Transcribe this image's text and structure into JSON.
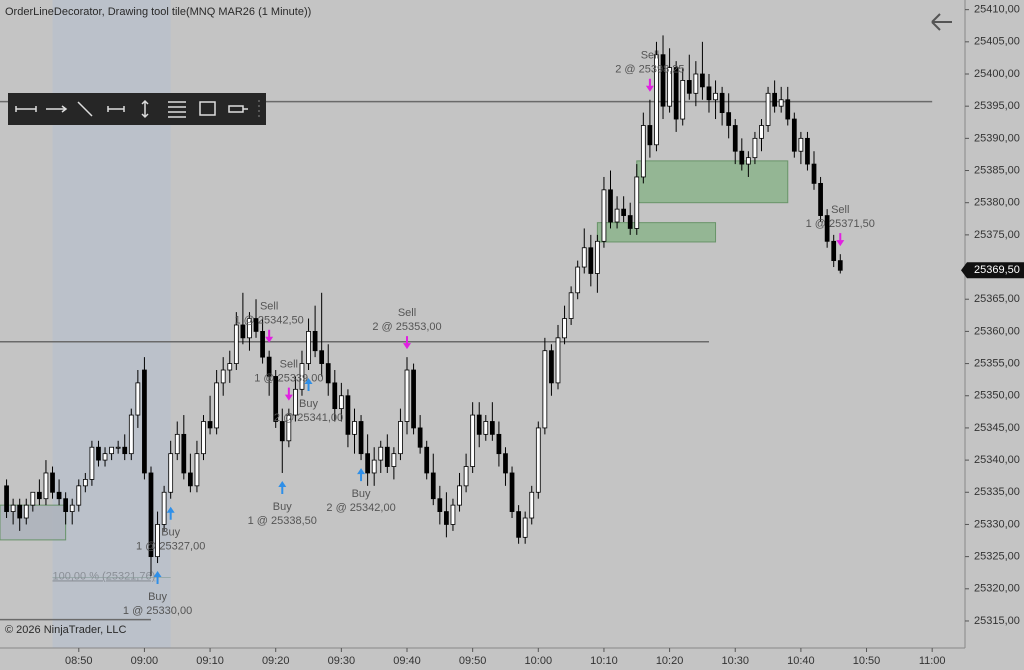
{
  "chart_data": {
    "type": "candlestick",
    "title": "OrderLineDecorator, Drawing tool tile(MNQ MAR26 (1 Minute))",
    "copyright": "© 2026 NinjaTrader, LLC",
    "up_color": "#ffffff",
    "down_color": "#000000",
    "xlim": [
      "08:38",
      "11:05"
    ],
    "ylim": [
      25310.8,
      25411.5
    ],
    "xticks": [
      "08:50",
      "09:00",
      "09:10",
      "09:20",
      "09:30",
      "09:40",
      "09:50",
      "10:00",
      "10:10",
      "10:20",
      "10:30",
      "10:40",
      "10:50",
      "11:00"
    ],
    "yticks": [
      {
        "value": 25315,
        "label": "25315,00"
      },
      {
        "value": 25320,
        "label": "25320,00"
      },
      {
        "value": 25325,
        "label": "25325,00"
      },
      {
        "value": 25330,
        "label": "25330,00"
      },
      {
        "value": 25335,
        "label": "25335,00"
      },
      {
        "value": 25340,
        "label": "25340,00"
      },
      {
        "value": 25345,
        "label": "25345,00"
      },
      {
        "value": 25350,
        "label": "25350,00"
      },
      {
        "value": 25355,
        "label": "25355,00"
      },
      {
        "value": 25360,
        "label": "25360,00"
      },
      {
        "value": 25365,
        "label": "25365,00"
      },
      {
        "value": 25370,
        "label": "25370,00"
      },
      {
        "value": 25375,
        "label": "25375,00"
      },
      {
        "value": 25380,
        "label": "25380,00"
      },
      {
        "value": 25385,
        "label": "25385,00"
      },
      {
        "value": 25390,
        "label": "25390,00"
      },
      {
        "value": 25395,
        "label": "25395,00"
      },
      {
        "value": 25400,
        "label": "25400,00"
      },
      {
        "value": 25405,
        "label": "25405,00"
      },
      {
        "value": 25410,
        "label": "25410,00"
      }
    ],
    "price_marker": {
      "value": 25369.5,
      "label": "25369,50"
    },
    "x": [
      "08:39",
      "08:40",
      "08:41",
      "08:42",
      "08:43",
      "08:44",
      "08:45",
      "08:46",
      "08:47",
      "08:48",
      "08:49",
      "08:50",
      "08:51",
      "08:52",
      "08:53",
      "08:54",
      "08:55",
      "08:56",
      "08:57",
      "08:58",
      "08:59",
      "09:00",
      "09:01",
      "09:02",
      "09:03",
      "09:04",
      "09:05",
      "09:06",
      "09:07",
      "09:08",
      "09:09",
      "09:10",
      "09:11",
      "09:12",
      "09:13",
      "09:14",
      "09:15",
      "09:16",
      "09:17",
      "09:18",
      "09:19",
      "09:20",
      "09:21",
      "09:22",
      "09:23",
      "09:24",
      "09:25",
      "09:26",
      "09:27",
      "09:28",
      "09:29",
      "09:30",
      "09:31",
      "09:32",
      "09:33",
      "09:34",
      "09:35",
      "09:36",
      "09:37",
      "09:38",
      "09:39",
      "09:40",
      "09:41",
      "09:42",
      "09:43",
      "09:44",
      "09:45",
      "09:46",
      "09:47",
      "09:48",
      "09:49",
      "09:50",
      "09:51",
      "09:52",
      "09:53",
      "09:54",
      "09:55",
      "09:56",
      "09:57",
      "09:58",
      "09:59",
      "10:00",
      "10:01",
      "10:02",
      "10:03",
      "10:04",
      "10:05",
      "10:06",
      "10:07",
      "10:08",
      "10:09",
      "10:10",
      "10:11",
      "10:12",
      "10:13",
      "10:14",
      "10:15",
      "10:16",
      "10:17",
      "10:18",
      "10:19",
      "10:20",
      "10:21",
      "10:22",
      "10:23",
      "10:24",
      "10:25",
      "10:26",
      "10:27",
      "10:28",
      "10:29",
      "10:30",
      "10:31",
      "10:32",
      "10:33",
      "10:34",
      "10:35",
      "10:36",
      "10:37",
      "10:38",
      "10:39",
      "10:40",
      "10:41",
      "10:42",
      "10:43",
      "10:44",
      "10:45",
      "10:46"
    ],
    "ohlc": [
      [
        25336,
        25337,
        25331,
        25332
      ],
      [
        25332,
        25334,
        25330,
        25333
      ],
      [
        25333,
        25334,
        25329,
        25331
      ],
      [
        25331,
        25334,
        25330,
        25333
      ],
      [
        25333,
        25335,
        25332,
        25335
      ],
      [
        25335,
        25337,
        25333,
        25334
      ],
      [
        25334,
        25340,
        25333,
        25338
      ],
      [
        25338,
        25339,
        25334,
        25335
      ],
      [
        25335,
        25337,
        25333,
        25334
      ],
      [
        25334,
        25335,
        25330,
        25332
      ],
      [
        25332,
        25334,
        25330,
        25333
      ],
      [
        25333,
        25337,
        25332,
        25336
      ],
      [
        25336,
        25338,
        25335,
        25337
      ],
      [
        25337,
        25343,
        25336,
        25342
      ],
      [
        25342,
        25343,
        25339,
        25340
      ],
      [
        25340,
        25342,
        25339,
        25341
      ],
      [
        25341,
        25342,
        25340,
        25342
      ],
      [
        25342,
        25343,
        25341,
        25342
      ],
      [
        25342,
        25344,
        25340,
        25341
      ],
      [
        25341,
        25348,
        25340,
        25347
      ],
      [
        25347,
        25354,
        25345,
        25352
      ],
      [
        25354,
        25356,
        25337,
        25338
      ],
      [
        25338,
        25339,
        25322,
        25325
      ],
      [
        25325,
        25332,
        25324,
        25330
      ],
      [
        25330,
        25336,
        25329,
        25335
      ],
      [
        25335,
        25343,
        25334,
        25341
      ],
      [
        25341,
        25346,
        25340,
        25344
      ],
      [
        25344,
        25347,
        25337,
        25338
      ],
      [
        25338,
        25341,
        25335,
        25336
      ],
      [
        25336,
        25343,
        25335,
        25341
      ],
      [
        25341,
        25347,
        25340,
        25346
      ],
      [
        25346,
        25350,
        25344,
        25345
      ],
      [
        25345,
        25354,
        25344,
        25352
      ],
      [
        25352,
        25356,
        25350,
        25354
      ],
      [
        25354,
        25357,
        25352,
        25355
      ],
      [
        25355,
        25363,
        25354,
        25361
      ],
      [
        25361,
        25366,
        25358,
        25359
      ],
      [
        25359,
        25363,
        25357,
        25362
      ],
      [
        25362,
        25365,
        25359,
        25360
      ],
      [
        25360,
        25362,
        25355,
        25356
      ],
      [
        25356,
        25357,
        25350,
        25353
      ],
      [
        25353,
        25354,
        25345,
        25346
      ],
      [
        25346,
        25348,
        25338,
        25343
      ],
      [
        25343,
        25348,
        25342,
        25347
      ],
      [
        25347,
        25353,
        25346,
        25351
      ],
      [
        25351,
        25357,
        25350,
        25355
      ],
      [
        25355,
        25362,
        25354,
        25360
      ],
      [
        25360,
        25364,
        25356,
        25357
      ],
      [
        25357,
        25366,
        25353,
        25355
      ],
      [
        25355,
        25358,
        25350,
        25352
      ],
      [
        25352,
        25354,
        25346,
        25348
      ],
      [
        25348,
        25352,
        25346,
        25350
      ],
      [
        25350,
        25351,
        25342,
        25344
      ],
      [
        25344,
        25348,
        25341,
        25346
      ],
      [
        25346,
        25347,
        25340,
        25341
      ],
      [
        25341,
        25344,
        25336,
        25338
      ],
      [
        25338,
        25342,
        25336,
        25340
      ],
      [
        25340,
        25343,
        25338,
        25342
      ],
      [
        25342,
        25344,
        25338,
        25339
      ],
      [
        25339,
        25342,
        25337,
        25341
      ],
      [
        25341,
        25348,
        25340,
        25346
      ],
      [
        25346,
        25356,
        25344,
        25354
      ],
      [
        25354,
        25355,
        25344,
        25345
      ],
      [
        25345,
        25347,
        25341,
        25342
      ],
      [
        25342,
        25343,
        25337,
        25338
      ],
      [
        25338,
        25341,
        25333,
        25334
      ],
      [
        25334,
        25336,
        25330,
        25332
      ],
      [
        25332,
        25335,
        25328,
        25330
      ],
      [
        25330,
        25334,
        25329,
        25333
      ],
      [
        25333,
        25338,
        25332,
        25336
      ],
      [
        25336,
        25341,
        25335,
        25339
      ],
      [
        25339,
        25349,
        25338,
        25347
      ],
      [
        25347,
        25349,
        25342,
        25344
      ],
      [
        25344,
        25347,
        25343,
        25346
      ],
      [
        25346,
        25349,
        25343,
        25344
      ],
      [
        25344,
        25346,
        25339,
        25341
      ],
      [
        25341,
        25342,
        25336,
        25338
      ],
      [
        25338,
        25339,
        25331,
        25332
      ],
      [
        25332,
        25333,
        25327,
        25328
      ],
      [
        25328,
        25332,
        25327,
        25331
      ],
      [
        25331,
        25336,
        25330,
        25335
      ],
      [
        25335,
        25346,
        25334,
        25345
      ],
      [
        25345,
        25359,
        25344,
        25357
      ],
      [
        25357,
        25358,
        25350,
        25352
      ],
      [
        25352,
        25361,
        25351,
        25359
      ],
      [
        25359,
        25364,
        25358,
        25362
      ],
      [
        25362,
        25367,
        25361,
        25366
      ],
      [
        25366,
        25371,
        25365,
        25370
      ],
      [
        25370,
        25376,
        25369,
        25373
      ],
      [
        25373,
        25375,
        25367,
        25369
      ],
      [
        25369,
        25375,
        25366,
        25374
      ],
      [
        25374,
        25384,
        25373,
        25382
      ],
      [
        25382,
        25385,
        25376,
        25377
      ],
      [
        25377,
        25381,
        25376,
        25379
      ],
      [
        25379,
        25381,
        25377,
        25378
      ],
      [
        25378,
        25380,
        25375,
        25376
      ],
      [
        25376,
        25386,
        25375,
        25384
      ],
      [
        25384,
        25394,
        25383,
        25392
      ],
      [
        25392,
        25396,
        25387,
        25389
      ],
      [
        25389,
        25405,
        25388,
        25403
      ],
      [
        25403,
        25406,
        25393,
        25395
      ],
      [
        25395,
        25404,
        25394,
        25401
      ],
      [
        25401,
        25402,
        25391,
        25393
      ],
      [
        25393,
        25401,
        25392,
        25399
      ],
      [
        25399,
        25403,
        25396,
        25397
      ],
      [
        25397,
        25402,
        25395,
        25400
      ],
      [
        25400,
        25405,
        25396,
        25398
      ],
      [
        25398,
        25400,
        25394,
        25396
      ],
      [
        25396,
        25399,
        25393,
        25397
      ],
      [
        25397,
        25398,
        25392,
        25394
      ],
      [
        25394,
        25397,
        25390,
        25392
      ],
      [
        25392,
        25393,
        25386,
        25388
      ],
      [
        25388,
        25390,
        25385,
        25386
      ],
      [
        25386,
        25388,
        25384,
        25387
      ],
      [
        25387,
        25391,
        25386,
        25390
      ],
      [
        25390,
        25393,
        25388,
        25392
      ],
      [
        25392,
        25398,
        25391,
        25397
      ],
      [
        25397,
        25399,
        25394,
        25395
      ],
      [
        25395,
        25398,
        25394,
        25396
      ],
      [
        25396,
        25398,
        25392,
        25393
      ],
      [
        25393,
        25394,
        25387,
        25388
      ],
      [
        25388,
        25391,
        25386,
        25390
      ],
      [
        25390,
        25391,
        25385,
        25386
      ],
      [
        25386,
        25388,
        25382,
        25383
      ],
      [
        25383,
        25384,
        25377,
        25378
      ],
      [
        25378,
        25379,
        25373,
        25374
      ],
      [
        25374,
        25375,
        25370,
        25371
      ],
      [
        25371,
        25372,
        25369,
        25369.5
      ]
    ],
    "lines": [
      {
        "price": 25395.7,
        "from": "08:38",
        "to": "11:00"
      },
      {
        "price": 25358.4,
        "from": "08:38",
        "to": "10:26"
      },
      {
        "price": 25315.2,
        "from": "08:38",
        "to": "09:01"
      }
    ],
    "zones": [
      {
        "from": "10:15",
        "to": "10:38",
        "top": 25386.5,
        "bottom": 25380.0,
        "color": "#8fb58f"
      },
      {
        "from": "10:09",
        "to": "10:27",
        "top": 25376.9,
        "bottom": 25373.9,
        "color": "#8fb58f"
      },
      {
        "from": "08:38",
        "to": "08:48",
        "top": 25333.0,
        "bottom": 25327.6,
        "color": "#aeb4bd"
      }
    ],
    "fib": {
      "from": "08:46",
      "to": "09:04",
      "price": 25321.76,
      "label": "100,00 % (25321,76)",
      "color": "#b9c0cc"
    },
    "executions": [
      {
        "side": "Sell",
        "text": "2 @ 25398,25",
        "time": "10:17"
      },
      {
        "side": "Sell",
        "text": "1 @ 25371,50",
        "time": "10:46"
      },
      {
        "side": "Sell",
        "text": "1 @ 25342,50",
        "time": "09:19"
      },
      {
        "side": "Sell",
        "text": "2 @ 25353,00",
        "time": "09:40"
      },
      {
        "side": "Sell",
        "text": "1 @ 25339,00",
        "time": "09:22"
      },
      {
        "side": "Buy",
        "text": "1 @ 25330,00",
        "time": "09:02"
      },
      {
        "side": "Buy",
        "text": "1 @ 25327,00",
        "time": "09:04"
      },
      {
        "side": "Buy",
        "text": "1 @ 25338,50",
        "time": "09:21"
      },
      {
        "side": "Buy",
        "text": "2 @ 25342,00",
        "time": "09:33"
      },
      {
        "side": "Buy",
        "text": "2 @ 25341,00",
        "time": "09:25"
      }
    ]
  }
}
